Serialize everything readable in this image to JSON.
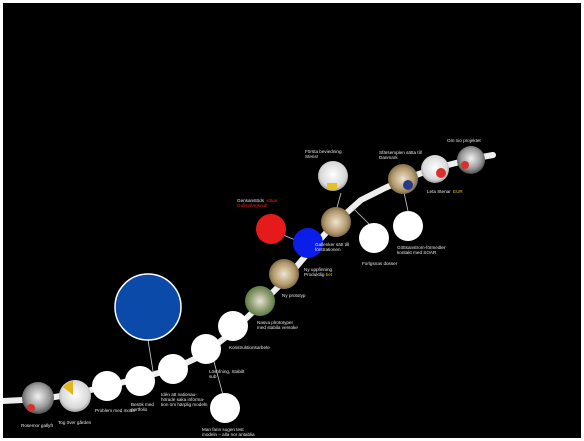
{
  "colors": {
    "background": "#000000",
    "node_white": "#ffffff",
    "node_large_blue": "#0b4aa8",
    "node_red": "#e51b1b",
    "node_blue": "#0a1ee8",
    "path": "#eeeeee",
    "accent_red": "#e32626",
    "accent_yellow": "#e3c11f"
  },
  "labels": {
    "t1": "Rosemor gallyft",
    "t2": "Tog över gården",
    "t3": "Problem med motor",
    "t4a": "Besök med",
    "t4b": "portfolio",
    "t5a": "Idén att nationau-",
    "t5b": "hörade saka informa-",
    "t5c": "tion om härplig modeln",
    "t6a": "Lösnfning, Stabilt",
    "t6b": "sub",
    "t7a": "Man fann sugen test",
    "t7b": "modeln – alla nor antablia",
    "t8": "Konstruktionsarbete",
    "t9a": "Nasva plrototyper",
    "t9b": "med stabila versoke",
    "t10": "Ny prototyp",
    "t11a": "Ny uppfinning",
    "t11b": "Produktlig",
    "t11c": "bet",
    "t12a": "Gensanstöds",
    "t12b": "sökar",
    "t12c": "Gullspångsnult",
    "t13a": "Gallenker sätt till",
    "t13b": "förstrationen",
    "t14": "Forlgsnas dosser",
    "t15a": "Första beviedning",
    "t15b": "Stens!",
    "t16a": "Göttsanstrom-förmedler",
    "t16b": "kontakt med SOAR",
    "t17a": "Sfärsemplen sätta till",
    "t17b": "Danmark",
    "t18a": "Leta Stenar",
    "t18b": "EUR",
    "t19": "Om nio projektet"
  }
}
